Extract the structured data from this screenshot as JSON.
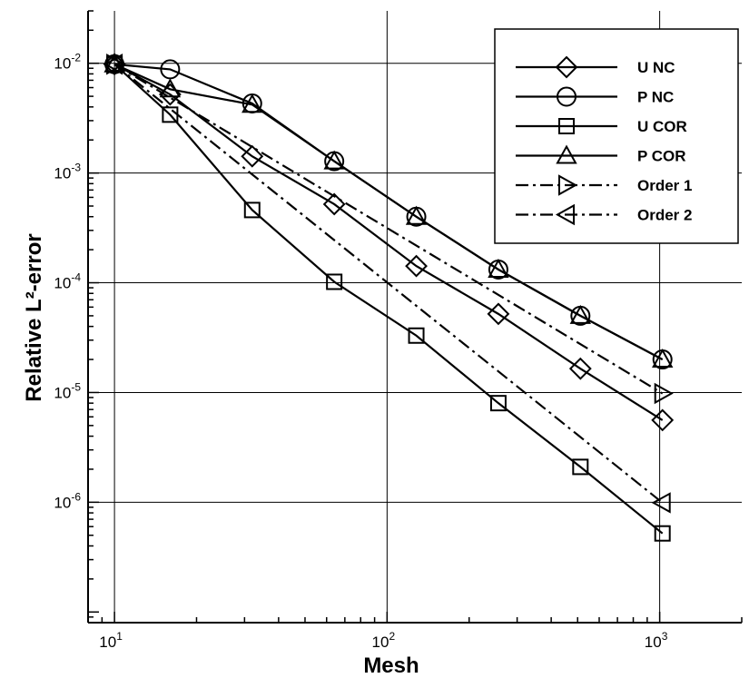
{
  "chart_data": {
    "type": "line",
    "title": "",
    "xlabel": "Mesh",
    "ylabel": "Relative L²-error",
    "xscale": "log",
    "yscale": "log",
    "xlim": [
      8,
      2000
    ],
    "ylim": [
      8e-08,
      0.03
    ],
    "grid": true,
    "legend_position": "top-right",
    "x_ticks": [
      {
        "value": 10,
        "base": "10",
        "exp": "1"
      },
      {
        "value": 100,
        "base": "10",
        "exp": "2"
      },
      {
        "value": 1000,
        "base": "10",
        "exp": "3"
      }
    ],
    "y_ticks": [
      {
        "value": 0.01,
        "base": "10",
        "exp": "-2"
      },
      {
        "value": 0.001,
        "base": "10",
        "exp": "-3"
      },
      {
        "value": 0.0001,
        "base": "10",
        "exp": "-4"
      },
      {
        "value": 1e-05,
        "base": "10",
        "exp": "-5"
      },
      {
        "value": 1e-06,
        "base": "10",
        "exp": "-6"
      }
    ],
    "series": [
      {
        "name": "U NC",
        "marker": "diamond",
        "dash": "solid",
        "x": [
          10,
          16,
          32,
          64,
          128,
          256,
          512,
          1024
        ],
        "y": [
          0.0098,
          0.0052,
          0.00142,
          0.00052,
          0.000142,
          5.2e-05,
          1.65e-05,
          5.6e-06
        ]
      },
      {
        "name": "P NC",
        "marker": "circle",
        "dash": "solid",
        "x": [
          10,
          16,
          32,
          64,
          128,
          256,
          512,
          1024
        ],
        "y": [
          0.0098,
          0.0088,
          0.0043,
          0.00128,
          0.0004,
          0.000132,
          5e-05,
          2e-05
        ]
      },
      {
        "name": "U COR",
        "marker": "square",
        "dash": "solid",
        "x": [
          10,
          16,
          32,
          64,
          128,
          256,
          512,
          1024
        ],
        "y": [
          0.0098,
          0.0034,
          0.00046,
          0.000102,
          3.3e-05,
          8e-06,
          2.1e-06,
          5.2e-07
        ]
      },
      {
        "name": "P COR",
        "marker": "triangle-up",
        "dash": "solid",
        "x": [
          10,
          16,
          32,
          64,
          128,
          256,
          512,
          1024
        ],
        "y": [
          0.0098,
          0.0058,
          0.0042,
          0.00128,
          0.0004,
          0.000132,
          5e-05,
          2e-05
        ]
      },
      {
        "name": "Order 1",
        "marker": "triangle-right",
        "dash": "dashdot",
        "x": [
          10,
          1024
        ],
        "y": [
          0.0098,
          9.8e-06
        ]
      },
      {
        "name": "Order 2",
        "marker": "triangle-left",
        "dash": "dashdot",
        "x": [
          10,
          1024
        ],
        "y": [
          0.0098,
          9.9e-07
        ]
      }
    ]
  }
}
